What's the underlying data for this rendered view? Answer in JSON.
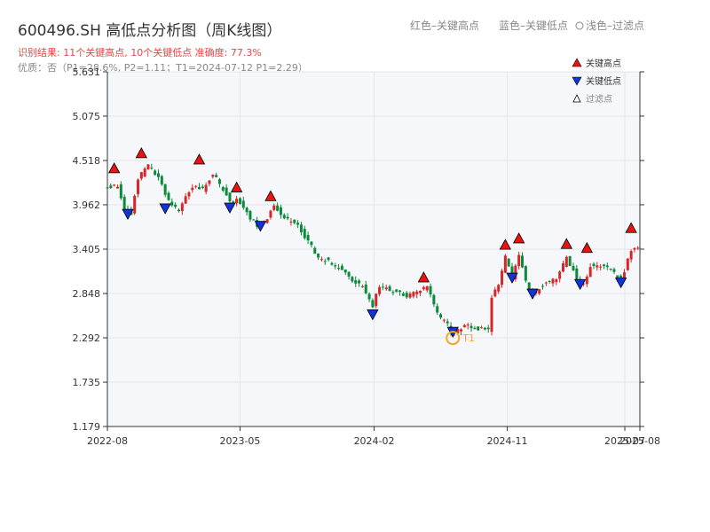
{
  "header": {
    "title": "600496.SH 高低点分析图（周K线图）",
    "result_line": "识别结果: 11个关键高点, 10个关键低点  准确度: 77.3%",
    "quality_line": "优质：否（P1=28.6%, P2=1.11；T1=2024-07-12 P1=2.29）"
  },
  "top_legend": {
    "red_label": "红色–关键高点",
    "blue_label": "蓝色–关键低点",
    "filtered_label": "浅色–过滤点"
  },
  "legend": {
    "high_label": "关键高点",
    "low_label": "关键低点",
    "filtered_label": "过滤点"
  },
  "colors": {
    "up": "#d62728",
    "down": "#0a8a3a",
    "high_marker": "#ee1111",
    "low_marker": "#1133dd",
    "t1_marker": "#f5a623",
    "plot_bg": "#f5f7fa",
    "grid": "#e3e6ea"
  },
  "chart_data": {
    "type": "candlestick",
    "x_tick_labels": [
      "2022-08",
      "2023-05",
      "2024-02",
      "2024-11",
      "2025-07",
      "2025-08"
    ],
    "x_tick_dates": [
      "2022-08-01",
      "2023-05-01",
      "2024-02-01",
      "2024-11-01",
      "2025-07-01",
      "2025-08-01"
    ],
    "x_range": [
      "2022-08-01",
      "2025-08-01"
    ],
    "y_ticks": [
      "1.179",
      "1.735",
      "2.292",
      "2.848",
      "3.405",
      "3.962",
      "4.518",
      "5.075",
      "5.631"
    ],
    "ylim": [
      1.179,
      5.631
    ],
    "grid": true,
    "legend_position": "top-right",
    "close_anchors": [
      [
        "2022-08-01",
        4.18
      ],
      [
        "2022-08-22",
        4.2
      ],
      [
        "2022-09-05",
        3.9
      ],
      [
        "2022-09-19",
        3.85
      ],
      [
        "2022-10-03",
        4.3
      ],
      [
        "2022-10-24",
        4.45
      ],
      [
        "2022-11-14",
        4.3
      ],
      [
        "2022-12-05",
        4.0
      ],
      [
        "2022-12-26",
        3.9
      ],
      [
        "2023-01-02",
        4.0
      ],
      [
        "2023-01-23",
        4.2
      ],
      [
        "2023-02-13",
        4.15
      ],
      [
        "2023-03-06",
        4.35
      ],
      [
        "2023-03-27",
        4.15
      ],
      [
        "2023-04-17",
        3.95
      ],
      [
        "2023-04-24",
        4.05
      ],
      [
        "2023-05-15",
        3.85
      ],
      [
        "2023-06-05",
        3.7
      ],
      [
        "2023-06-26",
        3.8
      ],
      [
        "2023-07-10",
        3.95
      ],
      [
        "2023-07-31",
        3.8
      ],
      [
        "2023-08-28",
        3.7
      ],
      [
        "2023-09-18",
        3.5
      ],
      [
        "2023-10-09",
        3.3
      ],
      [
        "2023-10-30",
        3.25
      ],
      [
        "2023-11-27",
        3.15
      ],
      [
        "2023-12-18",
        3.0
      ],
      [
        "2024-01-08",
        2.95
      ],
      [
        "2024-01-29",
        2.7
      ],
      [
        "2024-02-12",
        2.95
      ],
      [
        "2024-03-11",
        2.88
      ],
      [
        "2024-04-08",
        2.82
      ],
      [
        "2024-05-06",
        2.88
      ],
      [
        "2024-05-20",
        2.95
      ],
      [
        "2024-06-10",
        2.6
      ],
      [
        "2024-07-01",
        2.45
      ],
      [
        "2024-07-12",
        2.35
      ],
      [
        "2024-08-05",
        2.45
      ],
      [
        "2024-09-02",
        2.4
      ],
      [
        "2024-09-23",
        2.4
      ],
      [
        "2024-09-30",
        2.8
      ],
      [
        "2024-10-14",
        2.95
      ],
      [
        "2024-10-28",
        3.3
      ],
      [
        "2024-11-11",
        3.05
      ],
      [
        "2024-11-25",
        3.35
      ],
      [
        "2024-12-09",
        3.0
      ],
      [
        "2024-12-23",
        2.85
      ],
      [
        "2025-01-13",
        2.95
      ],
      [
        "2025-02-10",
        3.05
      ],
      [
        "2025-03-03",
        3.3
      ],
      [
        "2025-03-24",
        3.05
      ],
      [
        "2025-04-07",
        2.95
      ],
      [
        "2025-04-21",
        3.2
      ],
      [
        "2025-05-12",
        3.2
      ],
      [
        "2025-06-02",
        3.15
      ],
      [
        "2025-06-23",
        3.0
      ],
      [
        "2025-07-14",
        3.4
      ],
      [
        "2025-08-01",
        3.4
      ]
    ],
    "key_highs": [
      [
        "2022-08-15",
        4.33
      ],
      [
        "2022-10-10",
        4.52
      ],
      [
        "2023-02-06",
        4.44
      ],
      [
        "2023-04-24",
        4.09
      ],
      [
        "2023-07-03",
        3.98
      ],
      [
        "2024-05-13",
        2.96
      ],
      [
        "2024-10-28",
        3.37
      ],
      [
        "2024-11-25",
        3.45
      ],
      [
        "2025-03-03",
        3.38
      ],
      [
        "2025-04-14",
        3.33
      ],
      [
        "2025-07-14",
        3.58
      ]
    ],
    "key_lows": [
      [
        "2022-09-12",
        3.77
      ],
      [
        "2022-11-28",
        3.84
      ],
      [
        "2023-04-10",
        3.85
      ],
      [
        "2023-06-12",
        3.62
      ],
      [
        "2024-01-29",
        2.51
      ],
      [
        "2024-07-12",
        2.29
      ],
      [
        "2024-11-11",
        2.97
      ],
      [
        "2024-12-23",
        2.77
      ],
      [
        "2025-03-31",
        2.89
      ],
      [
        "2025-06-23",
        2.91
      ]
    ],
    "t1_point": {
      "label": "T1",
      "date": "2024-07-12",
      "value": 2.29
    }
  }
}
